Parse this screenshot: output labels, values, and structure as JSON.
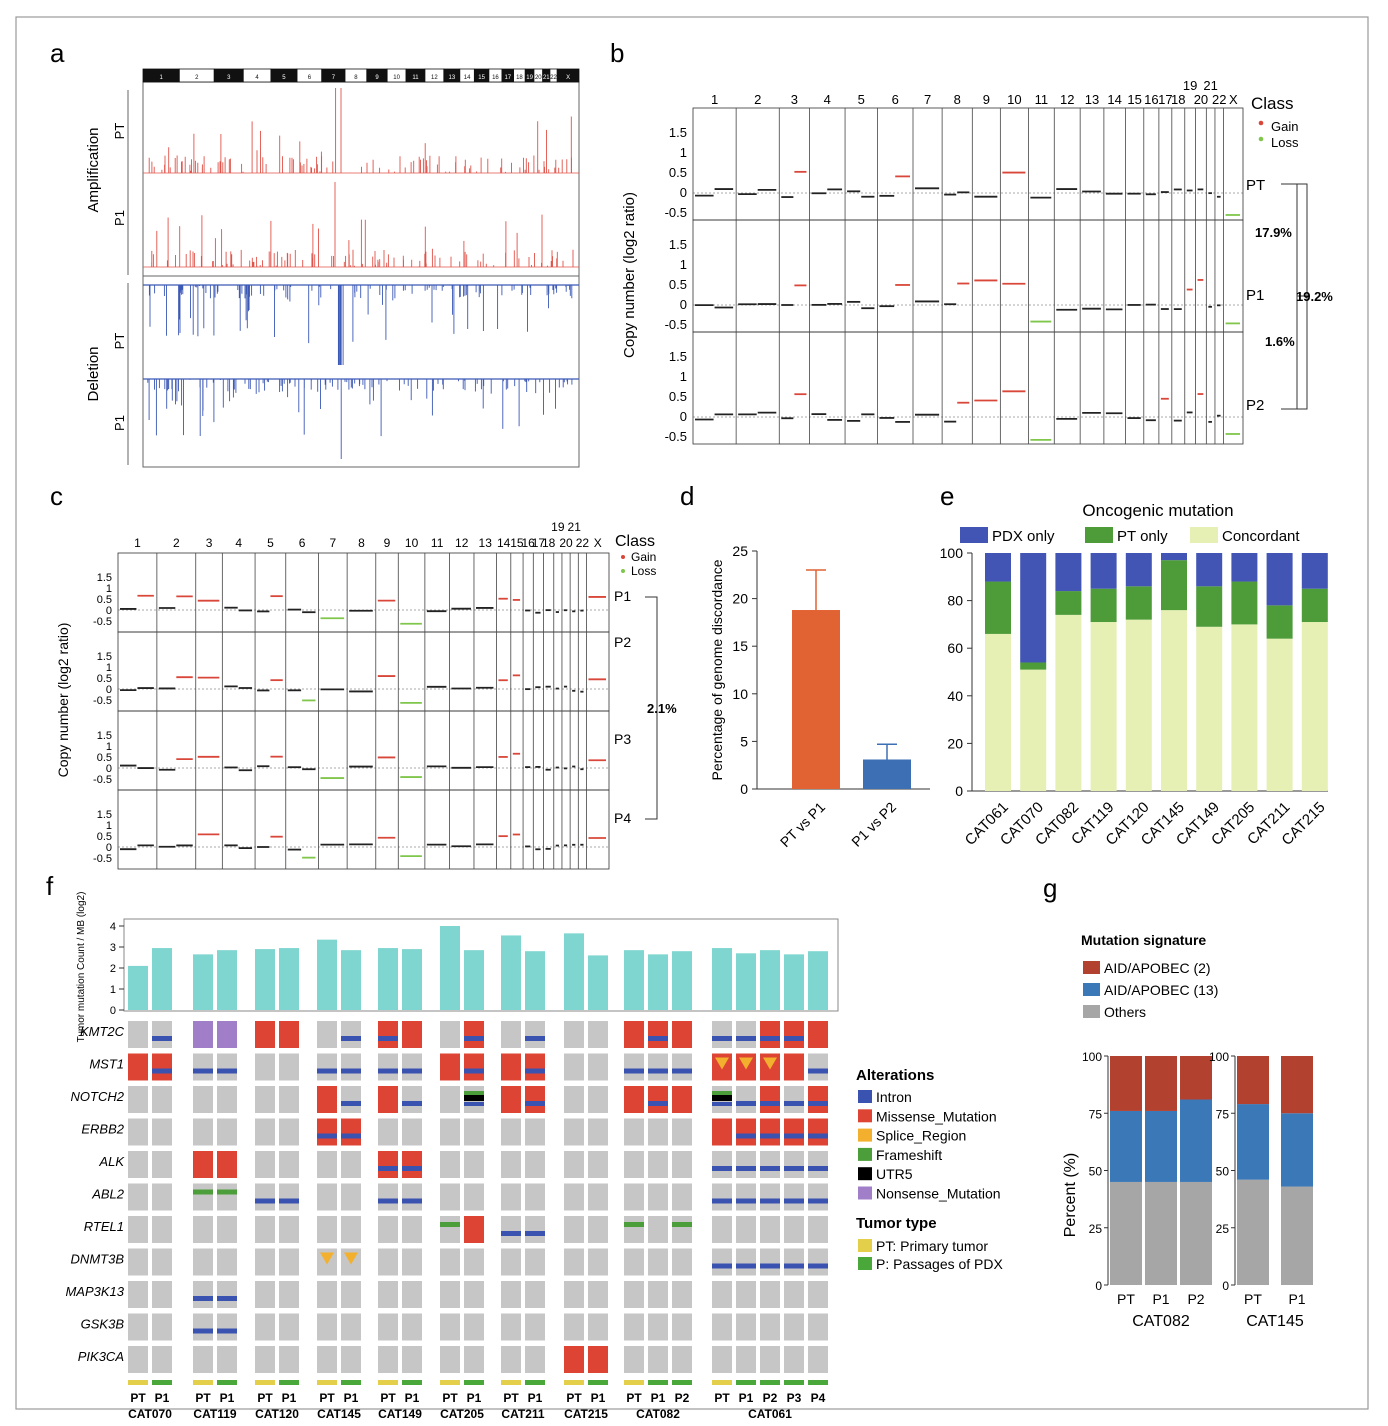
{
  "panel_labels": {
    "a": "a",
    "b": "b",
    "c": "c",
    "d": "d",
    "e": "e",
    "f": "f",
    "g": "g"
  },
  "colors": {
    "gain": "#d9473a",
    "loss": "#7fc64b",
    "amp": "#e0534a",
    "del": "#3c59b5",
    "missense": "#dd4433",
    "intron": "#3a52b0",
    "splice": "#f3b02e",
    "frameshift": "#4c9e3a",
    "utr5": "#000000",
    "nonsense": "#a07fc8",
    "pt_type": "#e3cf4a",
    "pdx_type": "#4aa83b",
    "tmb_bar": "#7fd5d0",
    "pdx_only": "#4255b4",
    "pt_only": "#4e9b3a",
    "concordant": "#e6f0b5",
    "bar_pt_p1": "#e16232",
    "bar_p1_p2": "#3c6fb4",
    "sig2": "#b3412f",
    "sig13": "#3a78b8",
    "others": "#a6a6a6",
    "cell_gray": "#c6c6c6"
  },
  "panel_a": {
    "chromosomes": [
      "1",
      "2",
      "3",
      "4",
      "5",
      "6",
      "7",
      "8",
      "9",
      "10",
      "11",
      "12",
      "13",
      "14",
      "15",
      "16",
      "17",
      "18",
      "19",
      "20",
      "21",
      "22",
      "X"
    ],
    "amp_label": "Amplification",
    "del_label": "Deletion",
    "tracks": [
      "PT",
      "P1",
      "PT",
      "P1"
    ]
  },
  "panel_b": {
    "ylabel": "Copy number  (log2 ratio)",
    "yticks": [
      "1.5",
      "1",
      "0.5",
      "0",
      "-0.5"
    ],
    "chrom_labels": [
      "1",
      "2",
      "3",
      "4",
      "5",
      "6",
      "7",
      "8",
      "9",
      "10",
      "11",
      "12",
      "13",
      "14",
      "15",
      "16",
      "17",
      "18",
      "19",
      "20",
      "21",
      "22",
      "X"
    ],
    "samples": [
      "PT",
      "P1",
      "P2"
    ],
    "legend_title": "Class",
    "legend_gain": "Gain",
    "legend_loss": "Loss",
    "pct_pt_p1": "17.9%",
    "pct_pt_p2": "19.2%",
    "pct_p1_p2": "1.6%"
  },
  "panel_c": {
    "ylabel": "Copy number  (log2 ratio)",
    "yticks": [
      "1.5",
      "1",
      "0.5",
      "0",
      "-0.5"
    ],
    "chrom_labels": [
      "1",
      "2",
      "3",
      "4",
      "5",
      "6",
      "7",
      "8",
      "9",
      "10",
      "11",
      "12",
      "13",
      "14",
      "15",
      "16",
      "17",
      "18",
      "19",
      "20",
      "21",
      "22",
      "X"
    ],
    "samples": [
      "P1",
      "P2",
      "P3",
      "P4"
    ],
    "legend_title": "Class",
    "legend_gain": "Gain",
    "legend_loss": "Loss",
    "pct": "2.1%"
  },
  "chart_data": [
    {
      "panel": "d",
      "type": "bar",
      "ylabel": "Percentage of genome discordance",
      "categories": [
        "PT vs P1",
        "P1 vs P2"
      ],
      "values": [
        18.8,
        3.1
      ],
      "errors": [
        4.2,
        1.6
      ],
      "ylim": [
        0,
        25
      ],
      "yticks": [
        0,
        5,
        10,
        15,
        20,
        25
      ]
    },
    {
      "panel": "e",
      "type": "bar",
      "stacked": true,
      "title": "Oncogenic mutation",
      "categories": [
        "CAT061",
        "CAT070",
        "CAT082",
        "CAT119",
        "CAT120",
        "CAT145",
        "CAT149",
        "CAT205",
        "CAT211",
        "CAT215"
      ],
      "series": [
        {
          "name": "Concordant",
          "values": [
            66,
            51,
            74,
            71,
            72,
            76,
            69,
            70,
            64,
            71
          ]
        },
        {
          "name": "PT only",
          "values": [
            22,
            3,
            10,
            14,
            14,
            21,
            17,
            18,
            14,
            14
          ]
        },
        {
          "name": "PDX only",
          "values": [
            12,
            46,
            16,
            15,
            14,
            3,
            14,
            12,
            22,
            15
          ]
        }
      ],
      "legend_order": [
        "PDX only",
        "PT only",
        "Concordant"
      ],
      "ylim": [
        0,
        100
      ],
      "yticks": [
        0,
        20,
        40,
        60,
        80,
        100
      ]
    },
    {
      "panel": "f",
      "type": "bar",
      "ylabel": "Tumor mutation Count / MB (log2)",
      "yticks": [
        "0",
        "1",
        "2",
        "3",
        "4"
      ],
      "ylim": [
        0,
        4
      ],
      "groups": [
        {
          "name": "CAT070",
          "samples": [
            "PT",
            "P1"
          ],
          "values": [
            2.1,
            2.95
          ]
        },
        {
          "name": "CAT119",
          "samples": [
            "PT",
            "P1"
          ],
          "values": [
            2.65,
            2.85
          ]
        },
        {
          "name": "CAT120",
          "samples": [
            "PT",
            "P1"
          ],
          "values": [
            2.9,
            2.95
          ]
        },
        {
          "name": "CAT145",
          "samples": [
            "PT",
            "P1"
          ],
          "values": [
            3.35,
            2.85
          ]
        },
        {
          "name": "CAT149",
          "samples": [
            "PT",
            "P1"
          ],
          "values": [
            2.95,
            2.9
          ]
        },
        {
          "name": "CAT205",
          "samples": [
            "PT",
            "P1"
          ],
          "values": [
            4.0,
            2.85
          ]
        },
        {
          "name": "CAT211",
          "samples": [
            "PT",
            "P1"
          ],
          "values": [
            3.55,
            2.8
          ]
        },
        {
          "name": "CAT215",
          "samples": [
            "PT",
            "P1"
          ],
          "values": [
            3.65,
            2.6
          ]
        },
        {
          "name": "CAT082",
          "samples": [
            "PT",
            "P1",
            "P2"
          ],
          "values": [
            2.85,
            2.65,
            2.8
          ]
        },
        {
          "name": "CAT061",
          "samples": [
            "PT",
            "P1",
            "P2",
            "P3",
            "P4"
          ],
          "values": [
            2.95,
            2.7,
            2.85,
            2.65,
            2.8
          ]
        }
      ]
    },
    {
      "panel": "g",
      "type": "bar",
      "stacked": true,
      "legend_title": "Mutation signature",
      "ylabel": "Percent (%)",
      "ylim": [
        0,
        100
      ],
      "yticks": [
        0,
        25,
        50,
        75,
        100
      ],
      "groups": [
        {
          "name": "CAT082",
          "samples": [
            "PT",
            "P1",
            "P2"
          ],
          "series": {
            "Others": [
              45,
              45,
              45
            ],
            "AID/APOBEC (13)": [
              31,
              31,
              36
            ],
            "AID/APOBEC (2)": [
              24,
              24,
              19
            ]
          }
        },
        {
          "name": "CAT145",
          "samples": [
            "PT",
            "P1"
          ],
          "series": {
            "Others": [
              46,
              43
            ],
            "AID/APOBEC (13)": [
              33,
              32
            ],
            "AID/APOBEC (2)": [
              21,
              25
            ]
          }
        }
      ],
      "legend": [
        "AID/APOBEC (2)",
        "AID/APOBEC (13)",
        "Others"
      ]
    }
  ],
  "oncoprint": {
    "genes": [
      "KMT2C",
      "MST1",
      "NOTCH2",
      "ERBB2",
      "ALK",
      "ABL2",
      "RTEL1",
      "DNMT3B",
      "MAP3K13",
      "GSK3B",
      "PIK3CA"
    ],
    "alteration_title": "Alterations",
    "alterations": [
      "Intron",
      "Missense_Mutation",
      "Splice_Region",
      "Frameshift",
      "UTR5",
      "Nonsense_Mutation"
    ],
    "tumor_type_title": "Tumor type",
    "tumor_types": [
      "PT: Primary tumor",
      "P: Passages of PDX"
    ]
  }
}
